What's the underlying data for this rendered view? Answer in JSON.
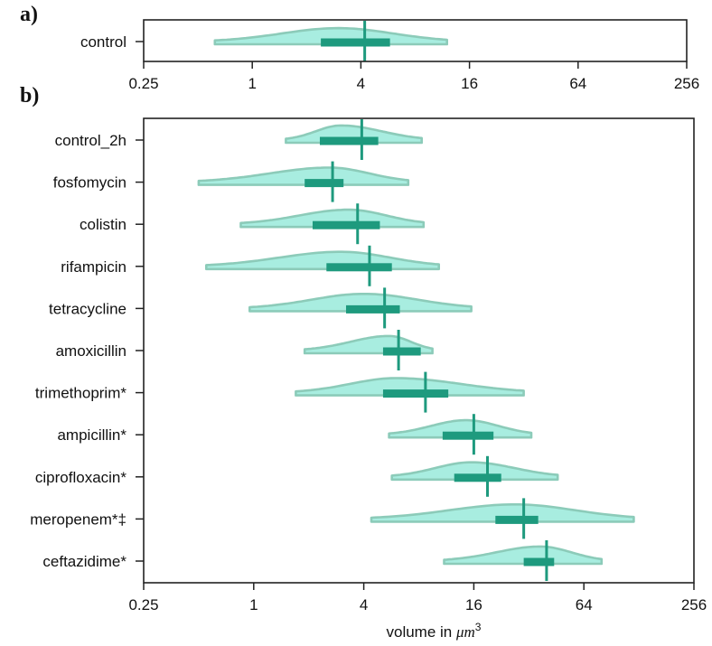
{
  "colors": {
    "violin_fill": "#a8ede0",
    "violin_edge": "#8ccbb9",
    "box": "#1e9a7e",
    "axis": "#222222"
  },
  "chart_data": [
    {
      "panel": "a",
      "panel_label": "a)",
      "type": "violin",
      "orientation": "horizontal",
      "xscale": "log2",
      "xlim": [
        0.25,
        256
      ],
      "xticks": [
        0.25,
        1,
        4,
        16,
        64,
        256
      ],
      "xtick_labels": [
        "0.25",
        "1",
        "4",
        "16",
        "64",
        "256"
      ],
      "xlabel": "",
      "categories": [
        "control"
      ],
      "series": [
        {
          "name": "control",
          "min": 0.62,
          "q1": 2.4,
          "median": 4.2,
          "q3": 5.8,
          "max": 12,
          "mode": 3.0
        }
      ]
    },
    {
      "panel": "b",
      "panel_label": "b)",
      "type": "violin",
      "orientation": "horizontal",
      "xscale": "log2",
      "xlim": [
        0.25,
        256
      ],
      "xticks": [
        0.25,
        1,
        4,
        16,
        64,
        256
      ],
      "xtick_labels": [
        "0.25",
        "1",
        "4",
        "16",
        "64",
        "256"
      ],
      "xlabel_prefix": "volume in ",
      "xlabel_math": "μm",
      "xlabel_sup": "3",
      "categories": [
        "control_2h",
        "fosfomycin",
        "colistin",
        "rifampicin",
        "tetracycline",
        "amoxicillin",
        "trimethoprim*",
        "ampicillin*",
        "ciprofloxacin*",
        "meropenem*‡",
        "ceftazidime*"
      ],
      "series": [
        {
          "name": "control_2h",
          "min": 1.5,
          "q1": 2.3,
          "median": 3.9,
          "q3": 4.8,
          "max": 8.3,
          "mode": 3.0
        },
        {
          "name": "fosfomycin",
          "min": 0.5,
          "q1": 1.9,
          "median": 2.7,
          "q3": 3.1,
          "max": 7.0,
          "mode": 2.6
        },
        {
          "name": "colistin",
          "min": 0.85,
          "q1": 2.1,
          "median": 3.7,
          "q3": 4.9,
          "max": 8.5,
          "mode": 3.3
        },
        {
          "name": "rifampicin",
          "min": 0.55,
          "q1": 2.5,
          "median": 4.3,
          "q3": 5.7,
          "max": 10.3,
          "mode": 3.0
        },
        {
          "name": "tetracycline",
          "min": 0.95,
          "q1": 3.2,
          "median": 5.2,
          "q3": 6.3,
          "max": 15.5,
          "mode": 4.0
        },
        {
          "name": "amoxicillin",
          "min": 1.9,
          "q1": 5.1,
          "median": 6.2,
          "q3": 8.2,
          "max": 9.5,
          "mode": 5.5
        },
        {
          "name": "trimethoprim*",
          "min": 1.7,
          "q1": 5.1,
          "median": 8.7,
          "q3": 11.6,
          "max": 30,
          "mode": 6.0
        },
        {
          "name": "ampicillin*",
          "min": 5.5,
          "q1": 10.8,
          "median": 16,
          "q3": 20.5,
          "max": 33,
          "mode": 14.5
        },
        {
          "name": "ciprofloxacin*",
          "min": 5.7,
          "q1": 12.5,
          "median": 19,
          "q3": 22.6,
          "max": 46,
          "mode": 15.5
        },
        {
          "name": "meropenem*‡",
          "min": 4.4,
          "q1": 21,
          "median": 30,
          "q3": 36,
          "max": 120,
          "mode": 27
        },
        {
          "name": "ceftazidime*",
          "min": 11,
          "q1": 30,
          "median": 40,
          "q3": 44,
          "max": 80,
          "mode": 37
        }
      ]
    }
  ]
}
